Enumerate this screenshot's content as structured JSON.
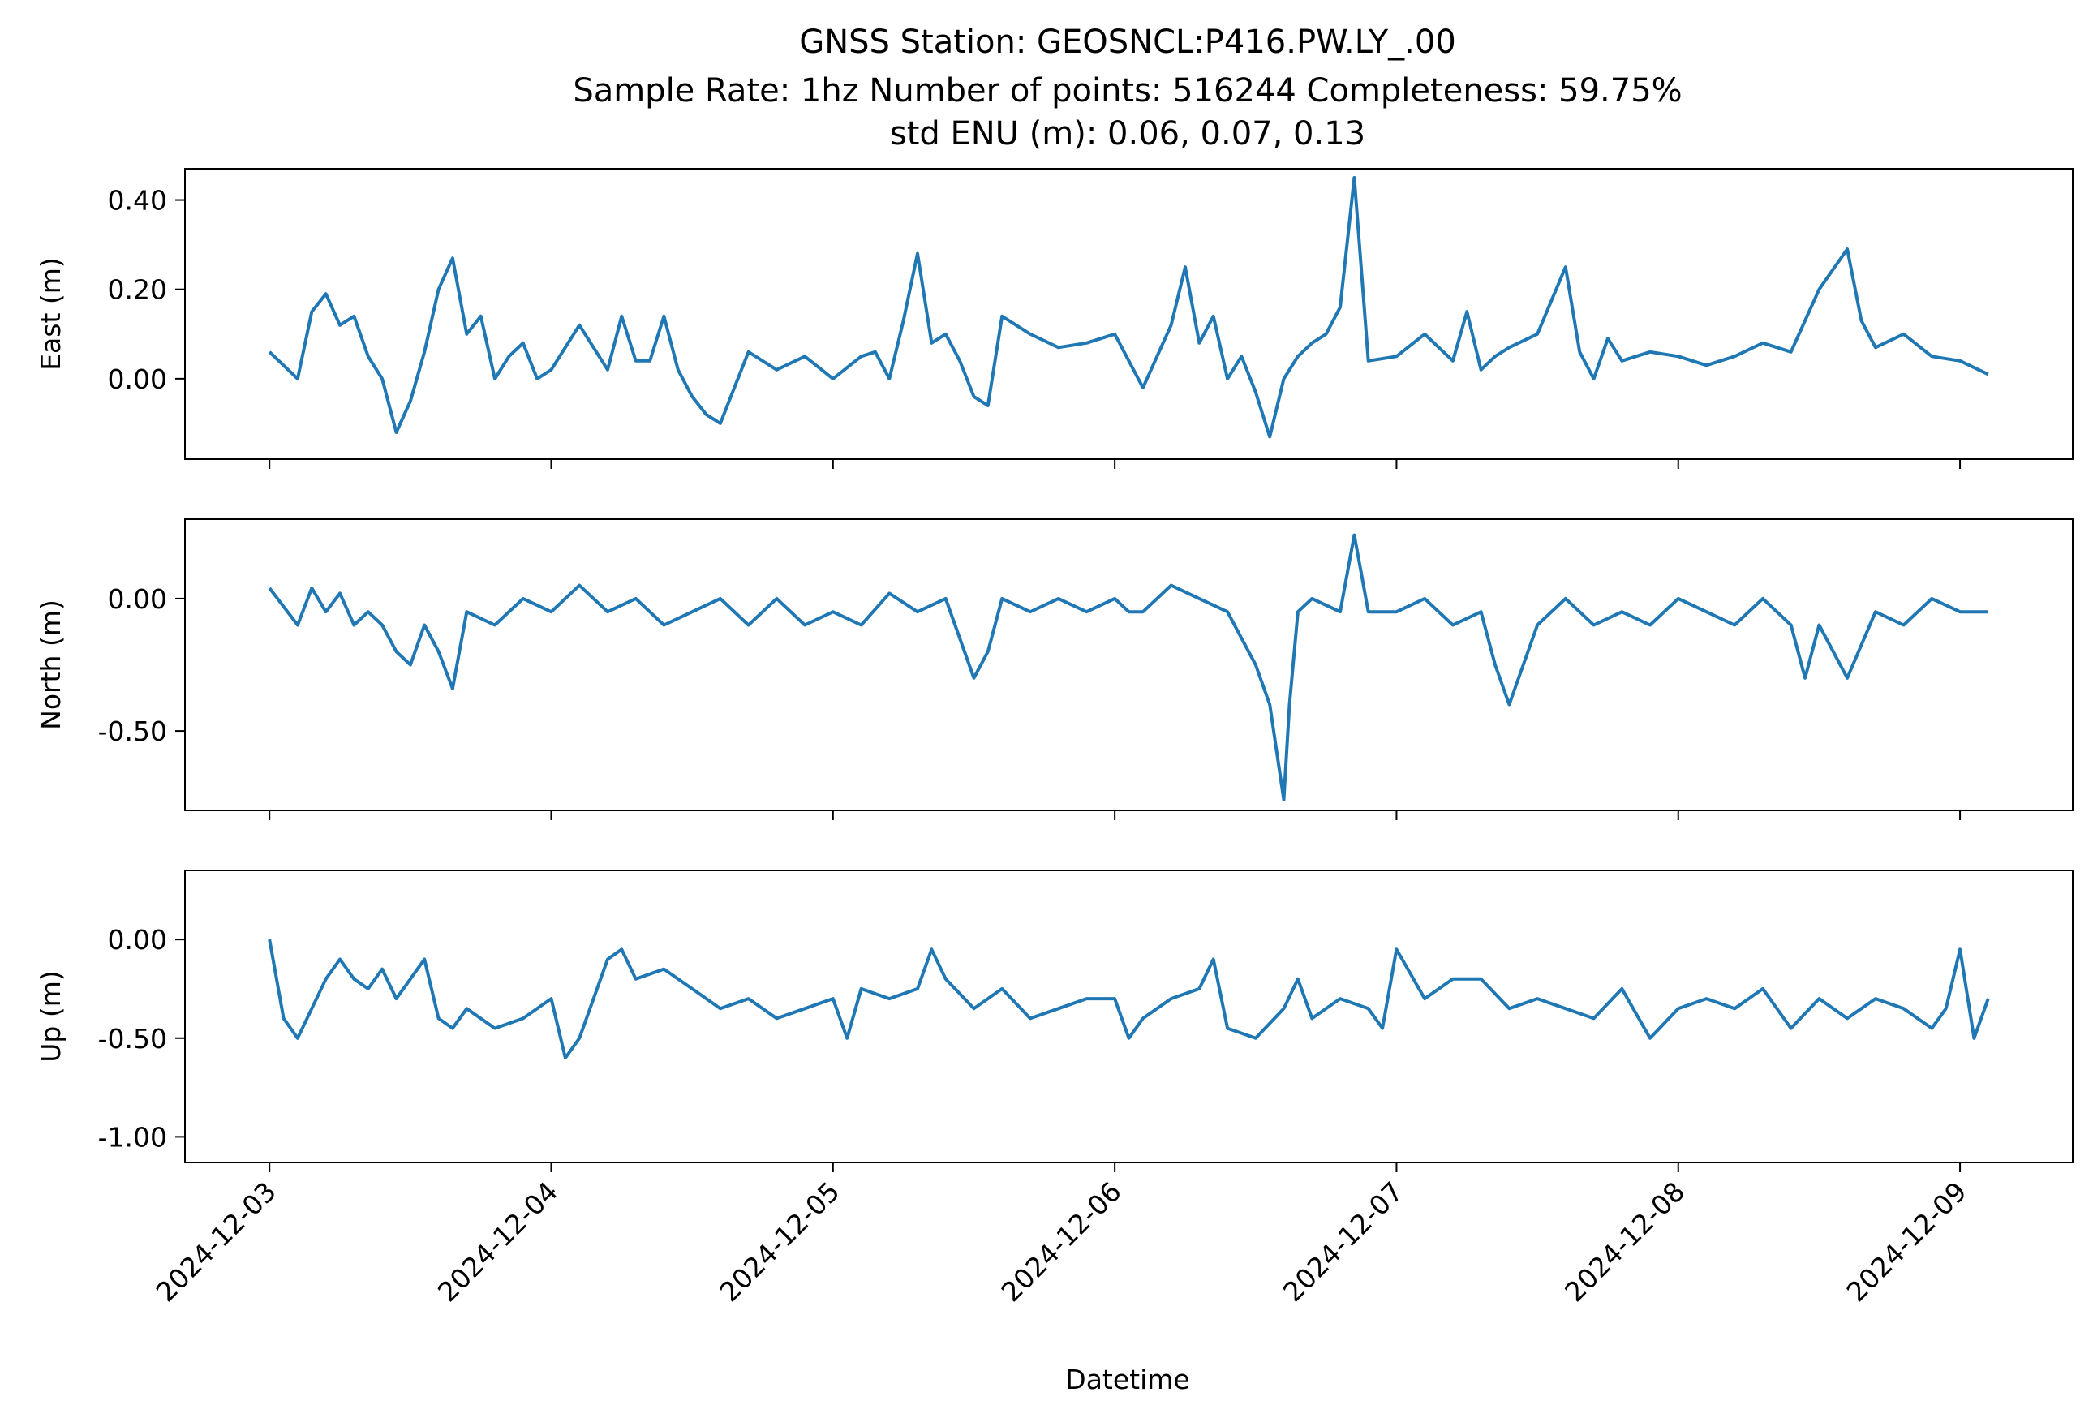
{
  "chart_data": {
    "type": "line",
    "title_lines": [
      "GNSS Station: GEOSNCL:P416.PW.LY_.00",
      "Sample Rate: 1hz   Number of points: 516244    Completeness:  59.75%",
      "std ENU (m):  0.06, 0.07, 0.13"
    ],
    "xlabel": "Datetime",
    "line_color": "#1f77b4",
    "x_ticks": [
      "2024-12-03",
      "2024-12-04",
      "2024-12-05",
      "2024-12-06",
      "2024-12-07",
      "2024-12-08",
      "2024-12-09"
    ],
    "xlim_days": [
      -0.3,
      6.4
    ],
    "x_data_range_days": [
      0.0,
      6.1
    ],
    "subplots": [
      {
        "ylabel": "East (m)",
        "ylim": [
          -0.18,
          0.47
        ],
        "yticks": [
          0.0,
          0.2,
          0.4
        ],
        "ytick_labels": [
          "0.00",
          "0.20",
          "0.40"
        ],
        "series": {
          "x": [
            0.0,
            0.1,
            0.15,
            0.2,
            0.25,
            0.3,
            0.35,
            0.4,
            0.45,
            0.5,
            0.55,
            0.6,
            0.65,
            0.7,
            0.75,
            0.8,
            0.85,
            0.9,
            0.95,
            1.0,
            1.1,
            1.2,
            1.25,
            1.3,
            1.35,
            1.4,
            1.45,
            1.5,
            1.55,
            1.6,
            1.7,
            1.8,
            1.9,
            2.0,
            2.1,
            2.15,
            2.2,
            2.25,
            2.3,
            2.35,
            2.4,
            2.45,
            2.5,
            2.55,
            2.6,
            2.7,
            2.8,
            2.9,
            3.0,
            3.1,
            3.2,
            3.25,
            3.3,
            3.35,
            3.4,
            3.45,
            3.5,
            3.55,
            3.6,
            3.65,
            3.7,
            3.75,
            3.8,
            3.85,
            3.9,
            4.0,
            4.1,
            4.2,
            4.25,
            4.3,
            4.35,
            4.4,
            4.5,
            4.6,
            4.65,
            4.7,
            4.75,
            4.8,
            4.9,
            5.0,
            5.1,
            5.2,
            5.3,
            5.4,
            5.5,
            5.6,
            5.65,
            5.7,
            5.8,
            5.9,
            6.0,
            6.1
          ],
          "y": [
            0.06,
            0.0,
            0.15,
            0.19,
            0.12,
            0.14,
            0.05,
            0.0,
            -0.12,
            -0.05,
            0.06,
            0.2,
            0.27,
            0.1,
            0.14,
            0.0,
            0.05,
            0.08,
            0.0,
            0.02,
            0.12,
            0.02,
            0.14,
            0.04,
            0.04,
            0.14,
            0.02,
            -0.04,
            -0.08,
            -0.1,
            0.06,
            0.02,
            0.05,
            0.0,
            0.05,
            0.06,
            0.0,
            0.13,
            0.28,
            0.08,
            0.1,
            0.04,
            -0.04,
            -0.06,
            0.14,
            0.1,
            0.07,
            0.08,
            0.1,
            -0.02,
            0.12,
            0.25,
            0.08,
            0.14,
            0.0,
            0.05,
            -0.03,
            -0.13,
            0.0,
            0.05,
            0.08,
            0.1,
            0.16,
            0.45,
            0.04,
            0.05,
            0.1,
            0.04,
            0.15,
            0.02,
            0.05,
            0.07,
            0.1,
            0.25,
            0.06,
            0.0,
            0.09,
            0.04,
            0.06,
            0.05,
            0.03,
            0.05,
            0.08,
            0.06,
            0.2,
            0.29,
            0.13,
            0.07,
            0.1,
            0.05,
            0.04,
            0.01
          ]
        }
      },
      {
        "ylabel": "North (m)",
        "ylim": [
          -0.8,
          0.3
        ],
        "yticks": [
          0.0,
          -0.5
        ],
        "ytick_labels": [
          "0.00",
          "-0.50"
        ],
        "series": {
          "x": [
            0.0,
            0.1,
            0.15,
            0.2,
            0.25,
            0.3,
            0.35,
            0.4,
            0.45,
            0.5,
            0.55,
            0.6,
            0.65,
            0.7,
            0.8,
            0.9,
            1.0,
            1.1,
            1.2,
            1.3,
            1.4,
            1.5,
            1.6,
            1.7,
            1.8,
            1.9,
            2.0,
            2.1,
            2.2,
            2.3,
            2.4,
            2.5,
            2.55,
            2.6,
            2.7,
            2.8,
            2.9,
            3.0,
            3.05,
            3.1,
            3.2,
            3.3,
            3.4,
            3.5,
            3.55,
            3.6,
            3.62,
            3.65,
            3.7,
            3.8,
            3.85,
            3.9,
            4.0,
            4.1,
            4.2,
            4.3,
            4.35,
            4.4,
            4.5,
            4.6,
            4.65,
            4.7,
            4.8,
            4.9,
            5.0,
            5.1,
            5.2,
            5.3,
            5.4,
            5.45,
            5.5,
            5.6,
            5.7,
            5.8,
            5.9,
            6.0,
            6.1
          ],
          "y": [
            0.04,
            -0.1,
            0.04,
            -0.05,
            0.02,
            -0.1,
            -0.05,
            -0.1,
            -0.2,
            -0.25,
            -0.1,
            -0.2,
            -0.34,
            -0.05,
            -0.1,
            0.0,
            -0.05,
            0.05,
            -0.05,
            0.0,
            -0.1,
            -0.05,
            0.0,
            -0.1,
            0.0,
            -0.1,
            -0.05,
            -0.1,
            0.02,
            -0.05,
            0.0,
            -0.3,
            -0.2,
            0.0,
            -0.05,
            0.0,
            -0.05,
            0.0,
            -0.05,
            -0.05,
            0.05,
            0.0,
            -0.05,
            -0.25,
            -0.4,
            -0.76,
            -0.4,
            -0.05,
            0.0,
            -0.05,
            0.24,
            -0.05,
            -0.05,
            0.0,
            -0.1,
            -0.05,
            -0.25,
            -0.4,
            -0.1,
            0.0,
            -0.05,
            -0.1,
            -0.05,
            -0.1,
            0.0,
            -0.05,
            -0.1,
            0.0,
            -0.1,
            -0.3,
            -0.1,
            -0.3,
            -0.05,
            -0.1,
            0.0,
            -0.05,
            -0.05
          ]
        }
      },
      {
        "ylabel": "Up (m)",
        "ylim": [
          -1.13,
          0.35
        ],
        "yticks": [
          0.0,
          -0.5,
          -1.0
        ],
        "ytick_labels": [
          "0.00",
          "-0.50",
          "-1.00"
        ],
        "series": {
          "x": [
            0.0,
            0.05,
            0.1,
            0.15,
            0.2,
            0.25,
            0.3,
            0.35,
            0.4,
            0.45,
            0.5,
            0.55,
            0.6,
            0.65,
            0.7,
            0.8,
            0.9,
            1.0,
            1.05,
            1.1,
            1.2,
            1.25,
            1.3,
            1.4,
            1.5,
            1.6,
            1.7,
            1.8,
            1.9,
            2.0,
            2.05,
            2.1,
            2.2,
            2.3,
            2.35,
            2.4,
            2.5,
            2.6,
            2.7,
            2.8,
            2.9,
            3.0,
            3.05,
            3.1,
            3.2,
            3.3,
            3.35,
            3.4,
            3.5,
            3.6,
            3.65,
            3.7,
            3.8,
            3.9,
            3.95,
            4.0,
            4.1,
            4.2,
            4.3,
            4.4,
            4.5,
            4.6,
            4.7,
            4.8,
            4.9,
            5.0,
            5.1,
            5.2,
            5.3,
            5.4,
            5.5,
            5.6,
            5.7,
            5.8,
            5.9,
            5.95,
            6.0,
            6.05,
            6.1
          ],
          "y": [
            0.0,
            -0.4,
            -0.5,
            -0.35,
            -0.2,
            -0.1,
            -0.2,
            -0.25,
            -0.15,
            -0.3,
            -0.2,
            -0.1,
            -0.4,
            -0.45,
            -0.35,
            -0.45,
            -0.4,
            -0.3,
            -0.6,
            -0.5,
            -0.1,
            -0.05,
            -0.2,
            -0.15,
            -0.25,
            -0.35,
            -0.3,
            -0.4,
            -0.35,
            -0.3,
            -0.5,
            -0.25,
            -0.3,
            -0.25,
            -0.05,
            -0.2,
            -0.35,
            -0.25,
            -0.4,
            -0.35,
            -0.3,
            -0.3,
            -0.5,
            -0.4,
            -0.3,
            -0.25,
            -0.1,
            -0.45,
            -0.5,
            -0.35,
            -0.2,
            -0.4,
            -0.3,
            -0.35,
            -0.45,
            -0.05,
            -0.3,
            -0.2,
            -0.2,
            -0.35,
            -0.3,
            -0.35,
            -0.4,
            -0.25,
            -0.5,
            -0.35,
            -0.3,
            -0.35,
            -0.25,
            -0.45,
            -0.3,
            -0.4,
            -0.3,
            -0.35,
            -0.45,
            -0.35,
            -0.05,
            -0.5,
            -0.3
          ]
        }
      }
    ]
  }
}
